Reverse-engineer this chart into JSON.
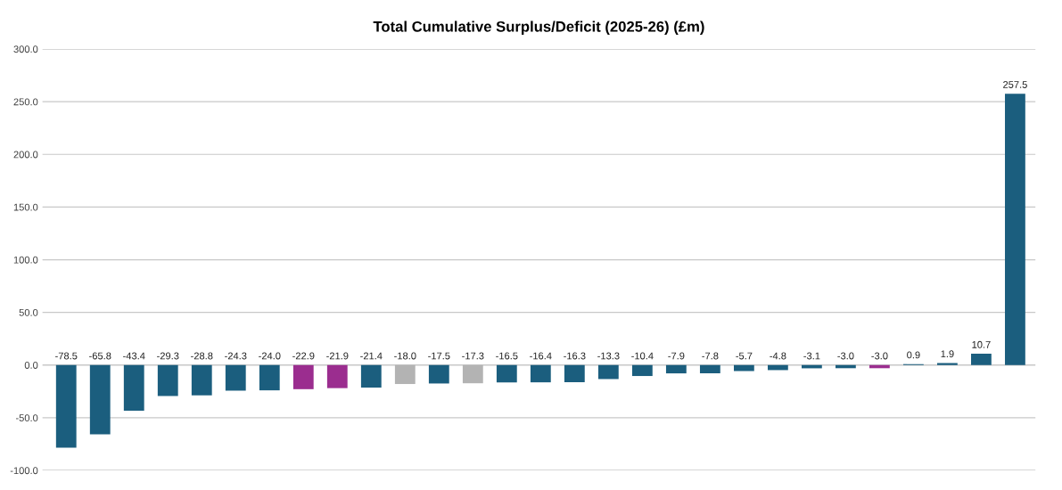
{
  "chart_data": {
    "type": "bar",
    "title": "Total Cumulative Surplus/Deficit (2025-26) (£m)",
    "categories": [
      null,
      null,
      null,
      null,
      null,
      null,
      null,
      null,
      null,
      null,
      null,
      null,
      null,
      null,
      null,
      null,
      null,
      null,
      null,
      null,
      null,
      null,
      null,
      null,
      null,
      null,
      null,
      null,
      null
    ],
    "values": [
      -78.5,
      -65.8,
      -43.4,
      -29.3,
      -28.8,
      -24.3,
      -24.0,
      -22.9,
      -21.9,
      -21.4,
      -18.0,
      -17.5,
      -17.3,
      -16.5,
      -16.4,
      -16.3,
      -13.3,
      -10.4,
      -7.9,
      -7.8,
      -5.7,
      -4.8,
      -3.1,
      -3.0,
      -3.0,
      0.9,
      1.9,
      10.7,
      257.5
    ],
    "colors": [
      "#1b5e7e",
      "#1b5e7e",
      "#1b5e7e",
      "#1b5e7e",
      "#1b5e7e",
      "#1b5e7e",
      "#1b5e7e",
      "#9b2d8f",
      "#9b2d8f",
      "#1b5e7e",
      "#b3b3b3",
      "#1b5e7e",
      "#b3b3b3",
      "#1b5e7e",
      "#1b5e7e",
      "#1b5e7e",
      "#1b5e7e",
      "#1b5e7e",
      "#1b5e7e",
      "#1b5e7e",
      "#1b5e7e",
      "#1b5e7e",
      "#1b5e7e",
      "#1b5e7e",
      "#9b2d8f",
      "#1b5e7e",
      "#1b5e7e",
      "#1b5e7e",
      "#1b5e7e"
    ],
    "ylim": [
      -100,
      300
    ],
    "yticks": [
      {
        "value": -100,
        "label": "-100.0"
      },
      {
        "value": -50,
        "label": "-50.0"
      },
      {
        "value": 0,
        "label": "0.0"
      },
      {
        "value": 50,
        "label": "50.0"
      },
      {
        "value": 100,
        "label": "100.0"
      },
      {
        "value": 150,
        "label": "150.0"
      },
      {
        "value": 200,
        "label": "200.0"
      },
      {
        "value": 250,
        "label": "250.0"
      },
      {
        "value": 300,
        "label": "300.0"
      }
    ],
    "value_labels": [
      "-78.5",
      "-65.8",
      "-43.4",
      "-29.3",
      "-28.8",
      "-24.3",
      "-24.0",
      "-22.9",
      "-21.9",
      "-21.4",
      "-18.0",
      "-17.5",
      "-17.3",
      "-16.5",
      "-16.4",
      "-16.3",
      "-13.3",
      "-10.4",
      "-7.9",
      "-7.8",
      "-5.7",
      "-4.8",
      "-3.1",
      "-3.0",
      "-3.0",
      "0.9",
      "1.9",
      "10.7",
      "257.5"
    ],
    "grid": "y"
  }
}
